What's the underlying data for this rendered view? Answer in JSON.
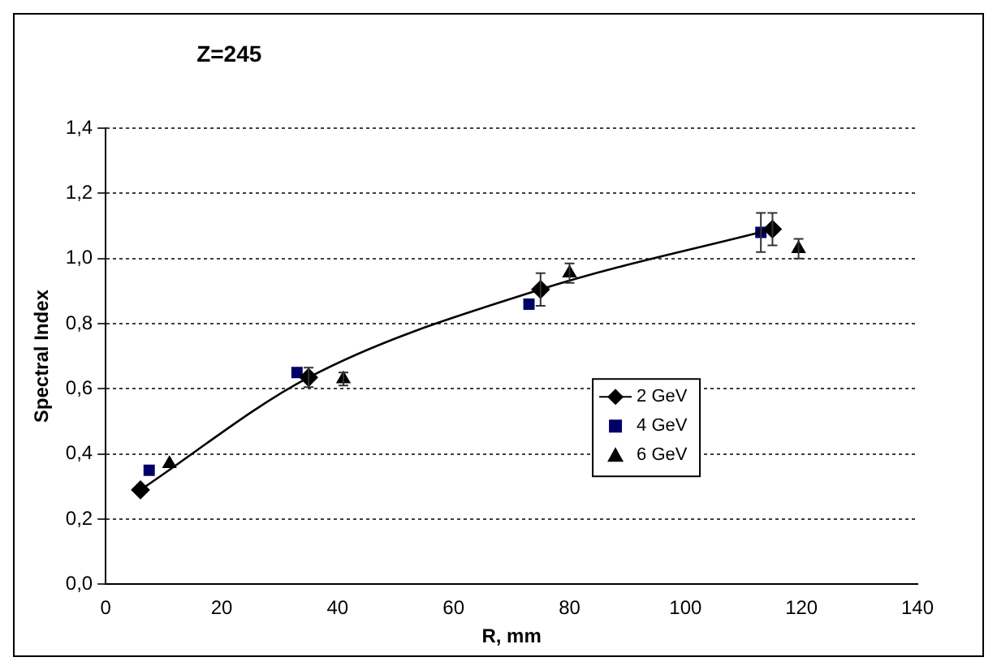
{
  "chart_data": {
    "type": "scatter",
    "title": "Z=245",
    "xlabel": "R, mm",
    "ylabel": "Spectral Index",
    "xlim": [
      0,
      140
    ],
    "xticks": [
      0,
      20,
      40,
      60,
      80,
      100,
      120,
      140
    ],
    "ylim": [
      0,
      1.4
    ],
    "yticks": [
      {
        "value": 0,
        "label": "0,0"
      },
      {
        "value": 0.2,
        "label": "0,2"
      },
      {
        "value": 0.4,
        "label": "0,4"
      },
      {
        "value": 0.6,
        "label": "0,6"
      },
      {
        "value": 0.8,
        "label": "0,8"
      },
      {
        "value": 1,
        "label": "1,0"
      },
      {
        "value": 1.2,
        "label": "1,2"
      },
      {
        "value": 1.4,
        "label": "1,4"
      }
    ],
    "grid": "y",
    "legend": "right",
    "series": [
      {
        "name": "2 GeV",
        "type": "line",
        "marker": "diamond",
        "line_style": "solid",
        "color": "#000000",
        "x": [
          6,
          35,
          75,
          115
        ],
        "values": [
          0.29,
          0.635,
          0.905,
          1.09
        ],
        "errors": [
          null,
          0.03,
          0.05,
          0.05
        ]
      },
      {
        "name": "4 GeV",
        "marker": "square",
        "color": "#000066",
        "x": [
          7.5,
          33,
          73,
          113
        ],
        "values": [
          0.35,
          0.65,
          0.86,
          1.08
        ],
        "errors": [
          null,
          null,
          null,
          0.06
        ]
      },
      {
        "name": "6 GeV",
        "marker": "triangle",
        "color": "#000000",
        "x": [
          11,
          41,
          80,
          119.5
        ],
        "values": [
          0.37,
          0.63,
          0.955,
          1.03
        ],
        "errors": [
          null,
          0.02,
          0.03,
          0.03
        ]
      }
    ]
  }
}
